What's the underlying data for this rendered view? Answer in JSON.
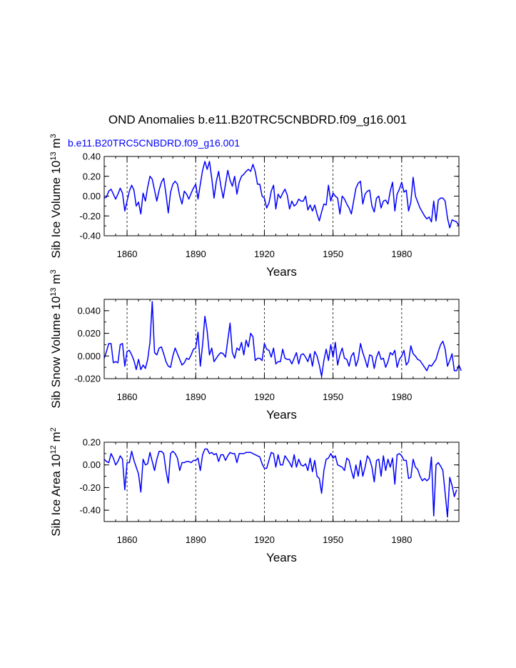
{
  "figure": {
    "title": "OND Anomalies b.e11.B20TRC5CNBDRD.f09_g16.001",
    "subtitle": "b.e11.B20TRC5CNBDRD.f09_g16.001",
    "colors": {
      "series": "#0000ff",
      "axes": "#000000",
      "background": "#ffffff"
    }
  },
  "chart_data": [
    {
      "type": "line",
      "title": "",
      "xlabel": "Years",
      "ylabel": {
        "text": "Sib Ice Volume 10",
        "exp": "13",
        "unit": " m",
        "unit_exp": "3"
      },
      "xlim": [
        1850,
        2005
      ],
      "ylim": [
        -0.4,
        0.4
      ],
      "xticks": [
        1860,
        1890,
        1920,
        1950,
        1980
      ],
      "xtick_labels": [
        "1860",
        "1890",
        "1920",
        "1950",
        "1980"
      ],
      "yticks": [
        -0.4,
        -0.2,
        0.0,
        0.2,
        0.4
      ],
      "ytick_labels": [
        "-0.40",
        "-0.20",
        "0.00",
        "0.20",
        "0.40"
      ],
      "vgrid": [
        1860,
        1890,
        1920,
        1950,
        1980
      ],
      "x_start": 1850,
      "series": [
        {
          "name": "b.e11.B20TRC5CNBDRD.f09_g16.001",
          "values": [
            -0.02,
            -0.01,
            0.05,
            0.07,
            0.02,
            -0.03,
            0.02,
            0.08,
            0.03,
            -0.15,
            -0.05,
            0.05,
            0.11,
            0.06,
            -0.1,
            -0.06,
            -0.18,
            0.03,
            -0.05,
            0.09,
            0.2,
            0.17,
            0.06,
            -0.05,
            0.06,
            0.14,
            0.18,
            0.02,
            -0.17,
            0.04,
            0.12,
            0.15,
            0.12,
            0.0,
            -0.08,
            0.05,
            0.02,
            -0.03,
            0.03,
            0.08,
            0.12,
            -0.03,
            0.12,
            0.26,
            0.35,
            0.27,
            0.35,
            0.18,
            -0.02,
            0.15,
            0.25,
            0.1,
            -0.02,
            0.12,
            0.26,
            0.16,
            0.1,
            0.2,
            0.02,
            0.14,
            0.2,
            0.22,
            0.25,
            0.27,
            0.25,
            0.32,
            0.25,
            0.12,
            0.12,
            0.0,
            -0.02,
            -0.12,
            -0.07,
            0.05,
            0.11,
            -0.13,
            0.02,
            -0.02,
            0.03,
            0.07,
            0.01,
            -0.13,
            -0.05,
            -0.1,
            -0.08,
            -0.03,
            -0.05,
            -0.05,
            0.0,
            -0.14,
            -0.09,
            -0.15,
            -0.09,
            -0.18,
            -0.25,
            -0.16,
            -0.08,
            -0.09,
            0.11,
            -0.05,
            0.03,
            0.0,
            -0.02,
            -0.18,
            0.0,
            -0.03,
            -0.08,
            -0.12,
            -0.18,
            -0.05,
            0.08,
            0.13,
            0.15,
            -0.08,
            0.02,
            0.05,
            0.06,
            -0.1,
            -0.16,
            -0.02,
            0.0,
            -0.12,
            -0.05,
            -0.04,
            -0.08,
            0.05,
            0.14,
            -0.15,
            0.02,
            0.07,
            0.14,
            0.04,
            0.06,
            -0.15,
            -0.06,
            0.19,
            0.0,
            -0.06,
            -0.12,
            -0.16,
            -0.2,
            -0.23,
            -0.21,
            -0.26,
            -0.05,
            -0.25,
            -0.04,
            -0.02,
            -0.02,
            -0.05,
            -0.22,
            -0.32,
            -0.24,
            -0.25,
            -0.26,
            -0.3
          ]
        }
      ]
    },
    {
      "type": "line",
      "title": "",
      "xlabel": "Years",
      "ylabel": {
        "text": "Sib Snow Volume 10",
        "exp": "13",
        "unit": " m",
        "unit_exp": "3"
      },
      "xlim": [
        1850,
        2005
      ],
      "ylim": [
        -0.02,
        0.05
      ],
      "xticks": [
        1860,
        1890,
        1920,
        1950,
        1980
      ],
      "xtick_labels": [
        "1860",
        "1890",
        "1920",
        "1950",
        "1980"
      ],
      "yticks": [
        -0.02,
        0.0,
        0.02,
        0.04
      ],
      "ytick_labels": [
        "-0.020",
        "0.000",
        "0.020",
        "0.040"
      ],
      "vgrid": [
        1860,
        1890,
        1920,
        1950,
        1980
      ],
      "x_start": 1850,
      "series": [
        {
          "name": "b.e11.B20TRC5CNBDRD.f09_g16.001",
          "values": [
            -0.002,
            0.004,
            0.011,
            0.011,
            -0.006,
            -0.005,
            -0.006,
            0.01,
            0.011,
            -0.009,
            0.004,
            0.005,
            0.001,
            -0.004,
            -0.012,
            -0.003,
            -0.012,
            -0.008,
            -0.011,
            -0.003,
            0.012,
            0.048,
            0.003,
            0.001,
            0.007,
            0.008,
            0.002,
            -0.005,
            -0.009,
            -0.01,
            0.0,
            0.007,
            0.002,
            -0.003,
            -0.008,
            -0.006,
            -0.002,
            -0.003,
            0.001,
            0.006,
            0.007,
            0.021,
            -0.009,
            0.01,
            0.035,
            0.022,
            0.001,
            0.007,
            -0.005,
            -0.002,
            0.001,
            0.003,
            0.002,
            -0.001,
            0.014,
            0.029,
            0.003,
            -0.002,
            0.007,
            0.005,
            0.012,
            0.001,
            0.014,
            0.008,
            0.02,
            0.017,
            -0.004,
            -0.002,
            -0.002,
            -0.004,
            0.011,
            0.006,
            0.005,
            -0.001,
            0.007,
            -0.007,
            -0.005,
            -0.005,
            0.006,
            -0.002,
            -0.003,
            -0.003,
            -0.007,
            -0.002,
            0.003,
            -0.007,
            0.001,
            0.002,
            -0.001,
            -0.005,
            0.002,
            -0.009,
            0.004,
            0.0,
            -0.008,
            -0.018,
            -0.004,
            0.006,
            -0.004,
            0.01,
            -0.001,
            0.012,
            -0.008,
            0.001,
            0.007,
            -0.002,
            -0.003,
            -0.009,
            0.0,
            0.003,
            -0.009,
            -0.003,
            0.011,
            0.003,
            -0.003,
            -0.01,
            0.001,
            0.0,
            -0.011,
            -0.001,
            0.004,
            -0.003,
            -0.002,
            -0.01,
            -0.005,
            0.003,
            0.001,
            0.005,
            -0.01,
            -0.003,
            0.0,
            0.005,
            -0.008,
            -0.005,
            0.009,
            0.002,
            0.0,
            -0.003,
            -0.004,
            -0.007,
            -0.01,
            -0.013,
            -0.008,
            -0.009,
            -0.006,
            -0.003,
            0.004,
            0.01,
            0.013,
            0.006,
            -0.009,
            -0.004,
            0.002,
            -0.013,
            -0.013,
            -0.008,
            -0.013
          ]
        }
      ]
    },
    {
      "type": "line",
      "title": "",
      "xlabel": "Years",
      "ylabel": {
        "text": "Sib Ice Area 10",
        "exp": "12",
        "unit": " m",
        "unit_exp": "2"
      },
      "xlim": [
        1850,
        2005
      ],
      "ylim": [
        -0.5,
        0.2
      ],
      "xticks": [
        1860,
        1890,
        1920,
        1950,
        1980
      ],
      "xtick_labels": [
        "1860",
        "1890",
        "1920",
        "1950",
        "1980"
      ],
      "yticks": [
        -0.4,
        -0.2,
        0.0,
        0.2
      ],
      "ytick_labels": [
        "-0.40",
        "-0.20",
        "0.00",
        "0.20"
      ],
      "vgrid": [
        1860,
        1890,
        1920,
        1950,
        1980
      ],
      "x_start": 1850,
      "series": [
        {
          "name": "b.e11.B20TRC5CNBDRD.f09_g16.001",
          "values": [
            0.05,
            0.03,
            0.02,
            0.1,
            0.06,
            0.0,
            0.03,
            0.08,
            0.05,
            -0.22,
            0.02,
            0.02,
            0.12,
            0.04,
            -0.02,
            -0.08,
            -0.24,
            0.05,
            0.0,
            0.01,
            0.11,
            0.03,
            -0.05,
            0.05,
            0.12,
            0.12,
            0.1,
            -0.05,
            -0.16,
            0.1,
            0.12,
            0.1,
            0.06,
            -0.05,
            0.02,
            0.02,
            0.03,
            0.03,
            0.02,
            0.04,
            0.04,
            0.06,
            -0.05,
            0.09,
            0.14,
            0.14,
            0.1,
            0.11,
            0.09,
            0.1,
            0.03,
            0.09,
            0.09,
            0.04,
            0.08,
            0.11,
            0.1,
            0.1,
            0.02,
            0.1,
            0.1,
            0.1,
            0.11,
            0.11,
            0.11,
            0.1,
            0.09,
            0.08,
            0.07,
            0.01,
            -0.03,
            -0.03,
            0.04,
            0.11,
            0.1,
            -0.02,
            0.09,
            0.0,
            0.0,
            0.08,
            0.05,
            0.02,
            -0.02,
            0.09,
            -0.02,
            0.05,
            0.0,
            -0.01,
            0.01,
            -0.05,
            0.06,
            -0.06,
            0.04,
            -0.1,
            -0.12,
            -0.25,
            -0.05,
            0.05,
            0.06,
            0.1,
            0.06,
            0.08,
            0.0,
            -0.01,
            -0.02,
            -0.05,
            0.06,
            0.04,
            -0.05,
            -0.12,
            0.0,
            -0.1,
            0.04,
            -0.1,
            -0.02,
            0.08,
            0.05,
            -0.02,
            -0.15,
            0.04,
            0.05,
            -0.1,
            0.08,
            -0.05,
            0.05,
            -0.02,
            0.06,
            -0.17,
            0.09,
            0.1,
            0.08,
            0.04,
            0.04,
            -0.12,
            -0.11,
            0.05,
            -0.02,
            -0.04,
            -0.1,
            -0.14,
            -0.12,
            -0.14,
            -0.12,
            0.07,
            -0.45,
            0.0,
            0.02,
            -0.01,
            -0.05,
            -0.25,
            -0.46,
            -0.11,
            -0.18,
            -0.28,
            -0.22
          ]
        }
      ]
    }
  ]
}
